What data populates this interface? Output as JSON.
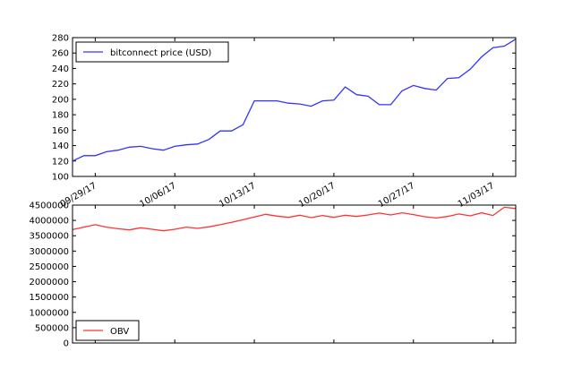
{
  "chart_data": [
    {
      "type": "line",
      "series": [
        {
          "name": "bitconnect price (USD)",
          "color": "#3333ff",
          "values": [
            120,
            127,
            127,
            132,
            134,
            138,
            139,
            136,
            134,
            139,
            141,
            142,
            148,
            159,
            159,
            167,
            198,
            198,
            198,
            195,
            194,
            191,
            198,
            199,
            216,
            206,
            204,
            193,
            193,
            211,
            218,
            214,
            212,
            227,
            228,
            239,
            255,
            267,
            269,
            278
          ]
        }
      ],
      "ylim": [
        100,
        280
      ],
      "yticks": [
        "100",
        "120",
        "140",
        "160",
        "180",
        "200",
        "220",
        "240",
        "260",
        "280"
      ],
      "xticks": [
        {
          "label": "09/29/17",
          "index": 2
        },
        {
          "label": "10/06/17",
          "index": 9
        },
        {
          "label": "10/13/17",
          "index": 16
        },
        {
          "label": "10/20/17",
          "index": 23
        },
        {
          "label": "10/27/17",
          "index": 30
        },
        {
          "label": "11/03/17",
          "index": 37
        }
      ],
      "legend": "top-left"
    },
    {
      "type": "line",
      "series": [
        {
          "name": "OBV",
          "color": "#ff3333",
          "values": [
            3700000,
            3780000,
            3860000,
            3780000,
            3730000,
            3690000,
            3760000,
            3710000,
            3660000,
            3710000,
            3780000,
            3740000,
            3790000,
            3860000,
            3940000,
            4020000,
            4110000,
            4200000,
            4140000,
            4100000,
            4170000,
            4090000,
            4160000,
            4100000,
            4170000,
            4130000,
            4180000,
            4240000,
            4180000,
            4250000,
            4190000,
            4120000,
            4080000,
            4130000,
            4210000,
            4150000,
            4250000,
            4160000,
            4430000,
            4390000
          ]
        }
      ],
      "ylim": [
        0,
        4500000
      ],
      "yticks": [
        "0",
        "500000",
        "1000000",
        "1500000",
        "2000000",
        "2500000",
        "3000000",
        "3500000",
        "4000000",
        "4500000"
      ],
      "legend": "bottom-left"
    }
  ]
}
